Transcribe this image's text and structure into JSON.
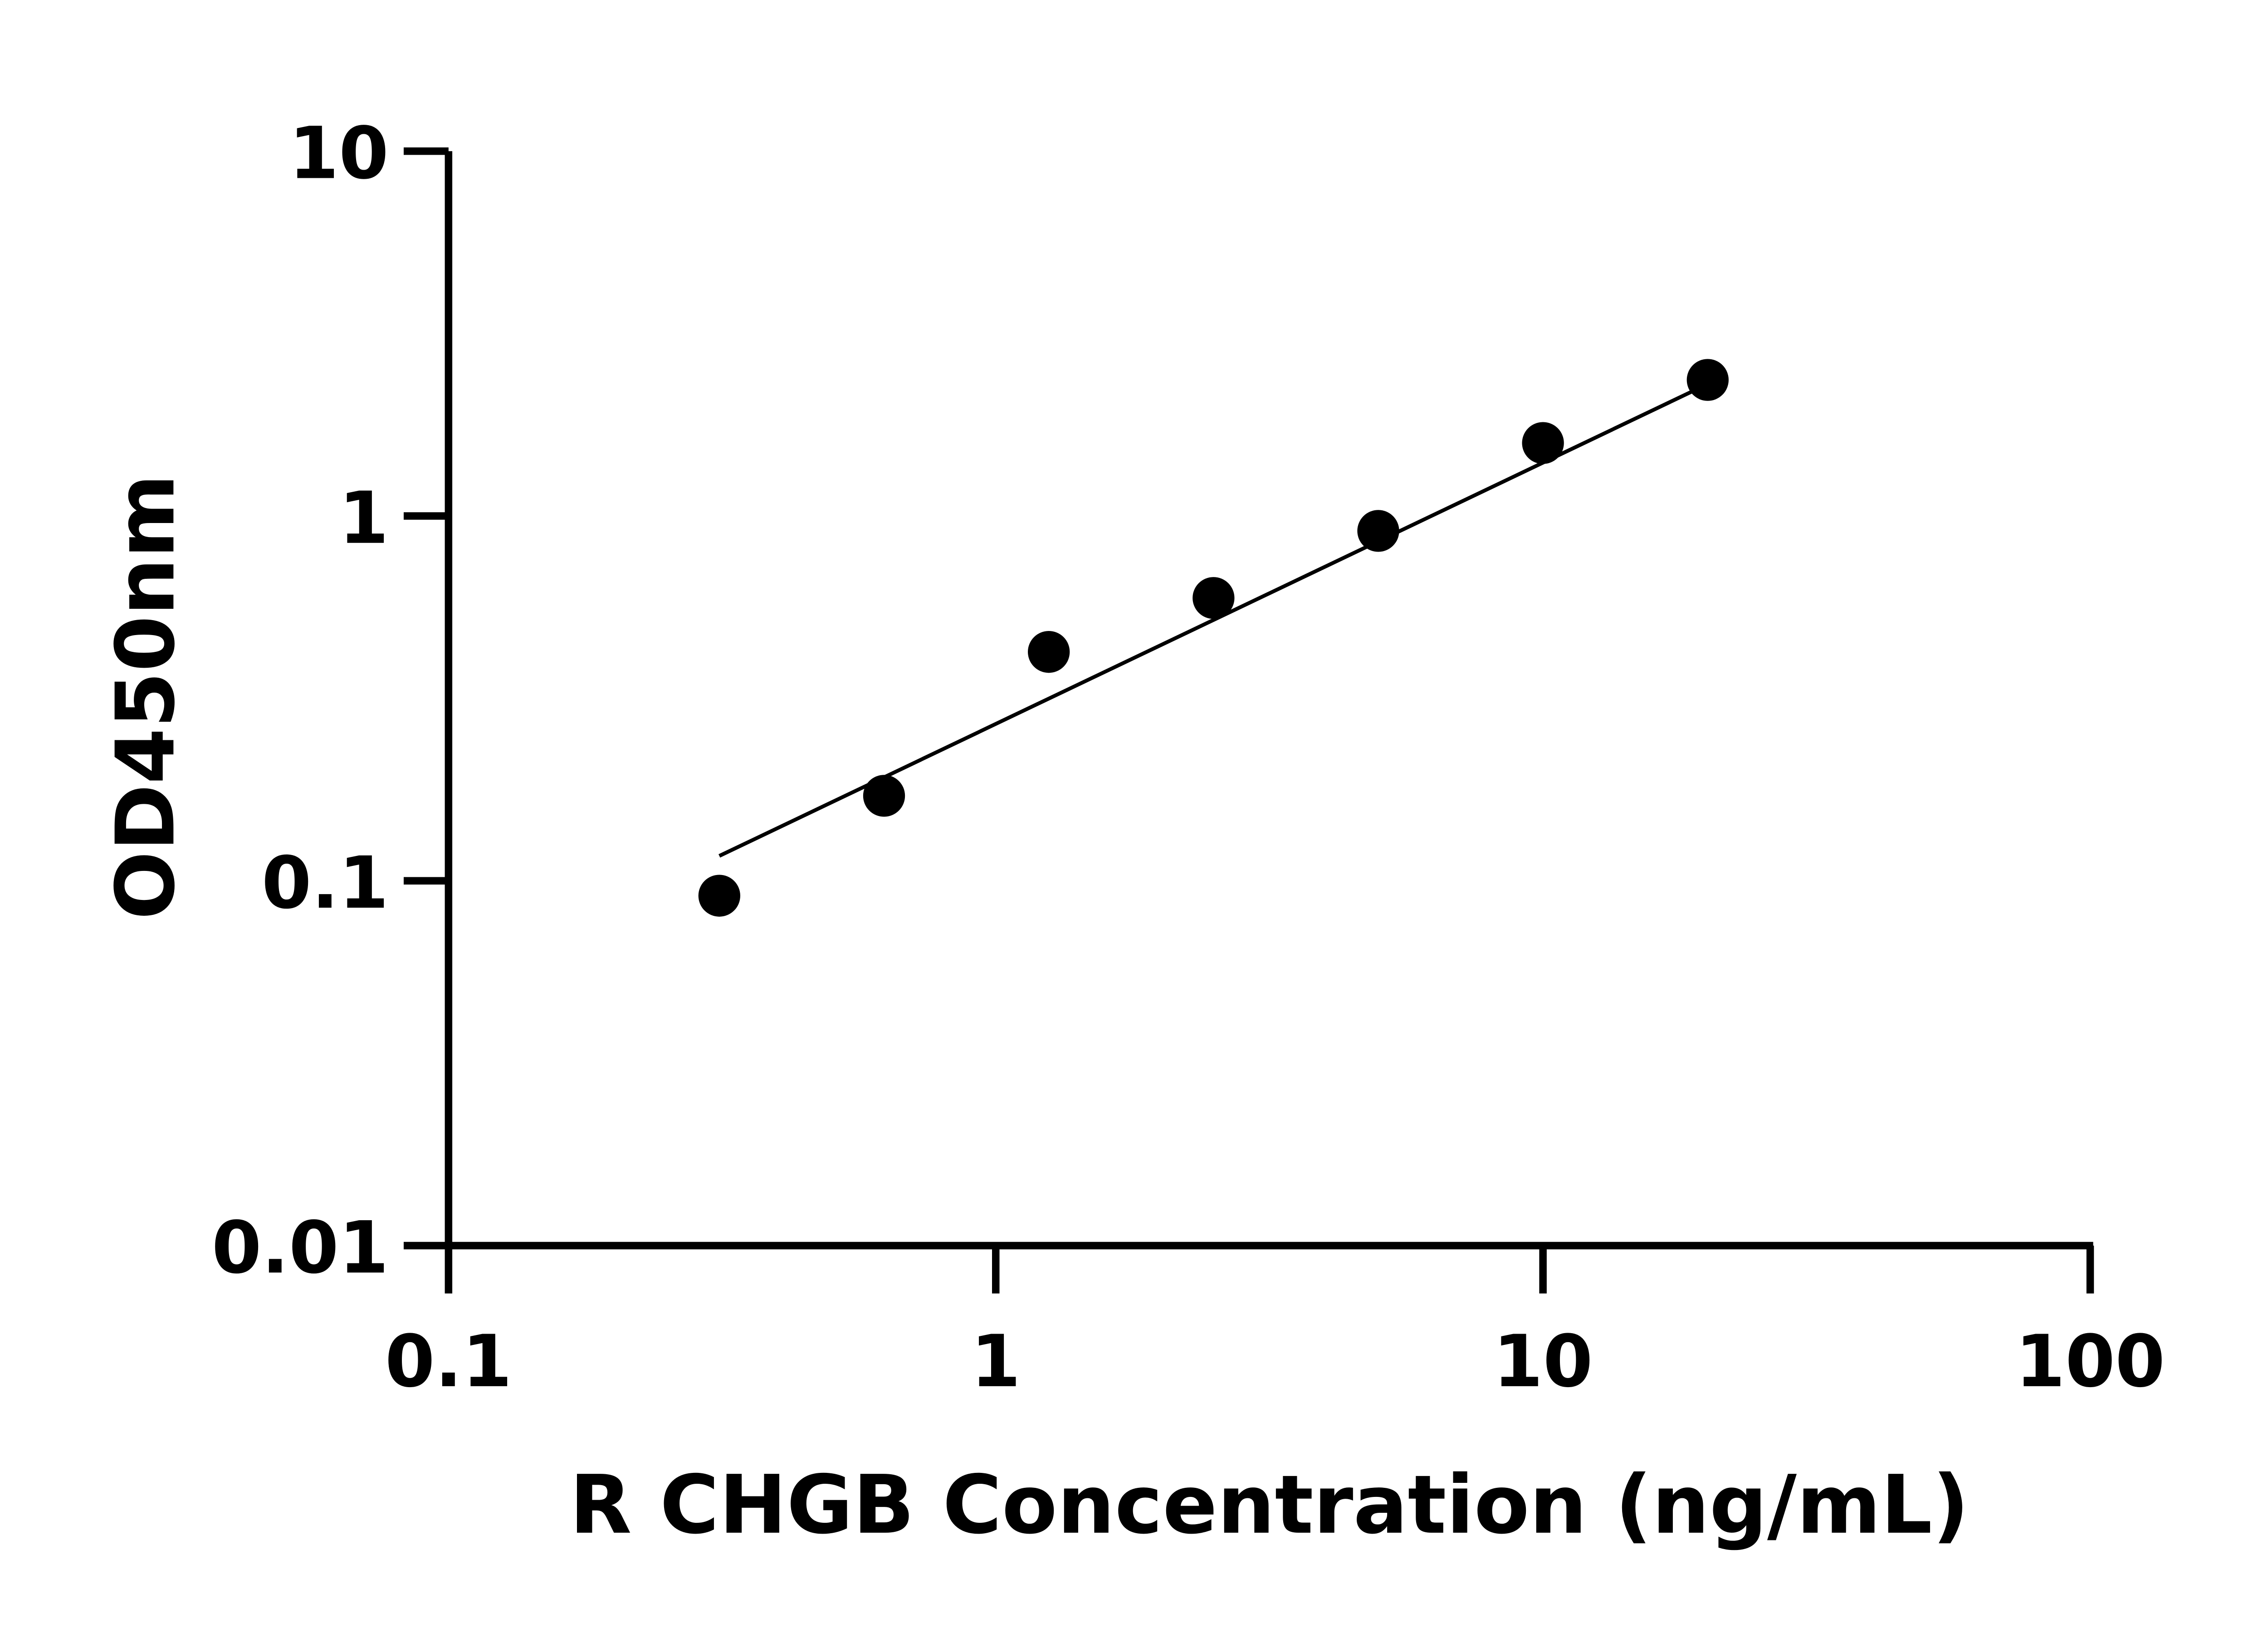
{
  "chart_data": {
    "type": "scatter",
    "title": "",
    "xlabel": "R CHGB Concentration (ng/mL)",
    "ylabel": "OD450nm",
    "x_scale": "log",
    "y_scale": "log",
    "xlim": [
      0.1,
      100
    ],
    "ylim": [
      0.01,
      10
    ],
    "x_ticks": [
      "0.1",
      "1",
      "10",
      "100"
    ],
    "y_ticks": [
      "0.01",
      "0.1",
      "1",
      "10"
    ],
    "grid": false,
    "series": [
      {
        "x": [
          0.3125,
          0.625,
          1.25,
          2.5,
          5,
          10,
          20
        ],
        "y": [
          0.091,
          0.171,
          0.424,
          0.596,
          0.91,
          1.585,
          2.36
        ]
      }
    ],
    "fit_line": {
      "x": [
        0.3125,
        20
      ],
      "y": [
        0.117,
        2.3
      ]
    },
    "colors": {
      "points": "#000000",
      "line": "#000000"
    }
  }
}
